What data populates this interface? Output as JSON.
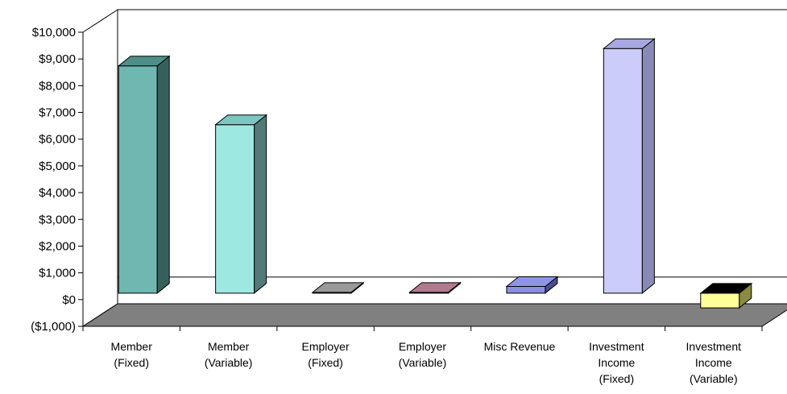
{
  "chart_data": {
    "type": "bar",
    "title": "",
    "xlabel": "",
    "ylabel": "",
    "ylim": [
      -1000,
      10000
    ],
    "yticks": [
      "($1,000)",
      "$0",
      "$1,000",
      "$2,000",
      "$3,000",
      "$4,000",
      "$5,000",
      "$6,000",
      "$7,000",
      "$8,000",
      "$9,000",
      "$10,000"
    ],
    "categories": [
      [
        "Member",
        "(Fixed)"
      ],
      [
        "Member",
        "(Variable)"
      ],
      [
        "Employer",
        "(Fixed)"
      ],
      [
        "Employer",
        "(Variable)"
      ],
      [
        "Misc Revenue"
      ],
      [
        "Investment",
        "Income",
        "(Fixed)"
      ],
      [
        "Investment",
        "Income",
        "(Variable)"
      ]
    ],
    "values": [
      8500,
      6300,
      0,
      0,
      250,
      9150,
      -550
    ],
    "colors": [
      {
        "front": "#6fb7b0",
        "side": "#37605c",
        "top": "#4f8f89"
      },
      {
        "front": "#9ee8e2",
        "side": "#527a76",
        "top": "#7cc7c1"
      },
      {
        "front": "#909090",
        "side": "#505050",
        "top": "#9a9a9a"
      },
      {
        "front": "#a0667a",
        "side": "#6a4050",
        "top": "#b07b8e"
      },
      {
        "front": "#8a8fe0",
        "side": "#4a4e90",
        "top": "#8f95e6"
      },
      {
        "front": "#ccccfa",
        "side": "#8a8ab8",
        "top": "#a8a8e0"
      },
      {
        "front": "#ffff99",
        "side": "#8a8a40",
        "top": "#000000"
      }
    ],
    "grid": false,
    "legend": "none"
  }
}
